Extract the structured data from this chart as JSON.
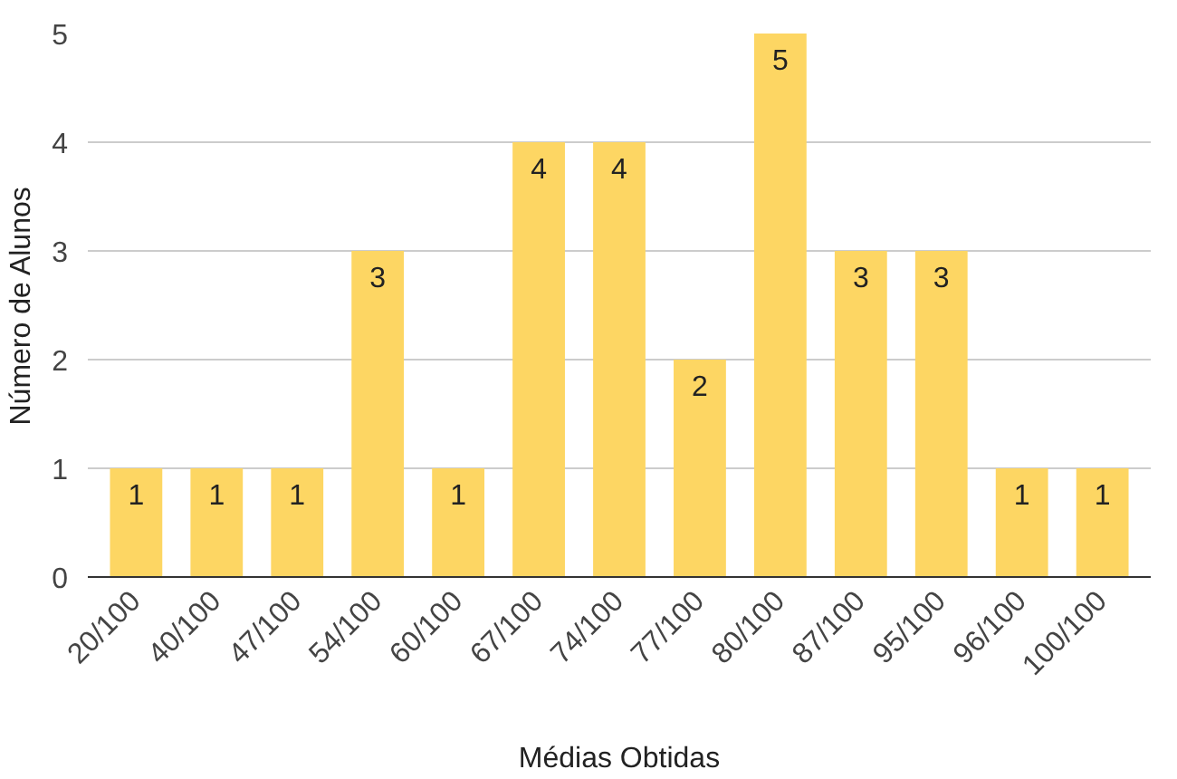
{
  "chart_data": {
    "type": "bar",
    "xlabel": "Médias Obtidas",
    "ylabel": "Número de Alunos",
    "categories": [
      "20/100",
      "40/100",
      "47/100",
      "54/100",
      "60/100",
      "67/100",
      "74/100",
      "77/100",
      "80/100",
      "87/100",
      "95/100",
      "96/100",
      "100/100"
    ],
    "values": [
      1,
      1,
      1,
      3,
      1,
      4,
      4,
      2,
      5,
      3,
      3,
      1,
      1
    ],
    "color": "#fdd663",
    "ylim": [
      0,
      5
    ],
    "yticks": [
      0,
      1,
      2,
      3,
      4,
      5
    ],
    "grid": "y",
    "data_labels": true
  }
}
